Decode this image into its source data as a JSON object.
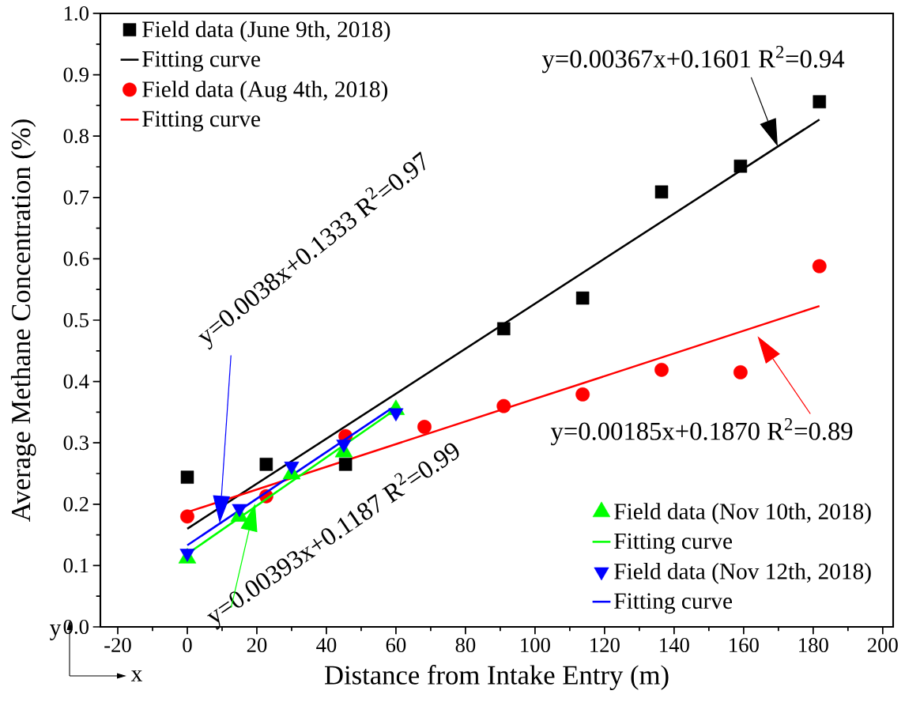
{
  "chart_data": {
    "type": "scatter",
    "xlabel": "Distance from Intake Entry (m)",
    "ylabel": "Average Methane Concentration (%)",
    "xlim": [
      -25,
      203
    ],
    "ylim": [
      0,
      1
    ],
    "xticks": [
      -20,
      0,
      20,
      40,
      60,
      80,
      100,
      120,
      140,
      160,
      180,
      200
    ],
    "yticks": [
      {
        "value": 0,
        "label": "0.0"
      },
      0.1,
      0.2,
      0.3,
      0.4,
      0.5,
      0.6,
      0.7,
      0.8,
      0.9,
      {
        "value": 1,
        "label": "1.0"
      }
    ],
    "legend": "top left",
    "series": [
      {
        "name": "Field data (June 9th, 2018)",
        "marker": "square",
        "color": "#000000",
        "x": [
          0,
          22.7,
          45.5,
          91,
          113.7,
          136.4,
          159.1,
          181.8
        ],
        "values": [
          0.244,
          0.265,
          0.265,
          0.486,
          0.536,
          0.709,
          0.751,
          0.856
        ]
      },
      {
        "name": "Fitting curve",
        "type": "line",
        "marker": "none",
        "color": "#000000",
        "x": [
          0,
          181.8
        ],
        "values": [
          0.16,
          0.827
        ]
      },
      {
        "name": "Field data (Aug 4th, 2018)",
        "marker": "circle",
        "color": "#ff0000",
        "x": [
          0,
          22.7,
          45.5,
          68.2,
          91,
          113.7,
          136.4,
          159.1,
          181.8
        ],
        "values": [
          0.18,
          0.213,
          0.311,
          0.326,
          0.36,
          0.379,
          0.419,
          0.415,
          0.588
        ]
      },
      {
        "name": "Fitting curve",
        "type": "line",
        "marker": "none",
        "color": "#ff0000",
        "x": [
          0,
          181.8
        ],
        "values": [
          0.187,
          0.523
        ]
      },
      {
        "name": "Field data (Nov 10th, 2018)",
        "marker": "triangle",
        "color": "#00ff00",
        "x": [
          0,
          15,
          30,
          45,
          60
        ],
        "values": [
          0.112,
          0.18,
          0.249,
          0.285,
          0.354
        ]
      },
      {
        "name": "Fitting curve",
        "type": "line",
        "marker": "none",
        "color": "#00ff00",
        "x": [
          0,
          60
        ],
        "values": [
          0.119,
          0.355
        ]
      },
      {
        "name": "Field data (Nov 12th, 2018)",
        "marker": "triangle_down",
        "color": "#0000ff",
        "x": [
          0,
          15,
          30,
          45,
          60
        ],
        "values": [
          0.12,
          0.193,
          0.262,
          0.298,
          0.349
        ]
      },
      {
        "name": "Fitting curve",
        "type": "line",
        "marker": "none",
        "color": "#0000ff",
        "x": [
          0,
          60
        ],
        "values": [
          0.133,
          0.361
        ]
      }
    ],
    "annotations": [
      {
        "text": "y=0.00367x+0.1601 R$^{2}$=0.94",
        "x": 169.8,
        "y": 0.783
      },
      "y=0.00185x+0.1870 R$^{2}$=0.89",
      "y=0.0038x+0.1333 R$^{2}$=0.97",
      {
        "text": "y=0.00393x+0.1187 R$^{2}$=0.99",
        "x": 19.5,
        "y": 0.201
      },
      "y",
      "x"
    ]
  }
}
